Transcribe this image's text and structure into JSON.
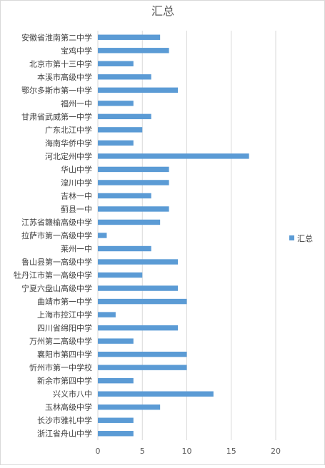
{
  "chart_data": {
    "type": "bar",
    "orientation": "horizontal",
    "title": "汇总",
    "categories": [
      "安徽省淮南第二中学",
      "宝鸡中学",
      "北京市第十三中学",
      "本溪市高级中学",
      "鄂尔多斯市第一中学",
      "福州一中",
      "甘肃省武威第一中学",
      "广东北江中学",
      "海南华侨中学",
      "河北定州中学",
      "华山中学",
      "湟川中学",
      "吉林一中",
      "蓟县一中",
      "江苏省赣榆高级中学",
      "拉萨市第一高级中学",
      "莱州一中",
      "鲁山县第一高级中学",
      "牡丹江市第一高级中学",
      "宁夏六盘山高级中学",
      "曲靖市第一中学",
      "上海市控江中学",
      "四川省绵阳中学",
      "万州第二高级中学",
      "襄阳市第四中学",
      "忻州市第一中学校",
      "新余市第四中学",
      "兴义市八中",
      "玉林高级中学",
      "长沙市雅礼中学",
      "浙江省舟山中学"
    ],
    "series": [
      {
        "name": "汇总",
        "values": [
          7,
          8,
          4,
          6,
          9,
          4,
          6,
          5,
          4,
          17,
          8,
          8,
          6,
          8,
          7,
          1,
          6,
          9,
          5,
          9,
          10,
          2,
          9,
          4,
          10,
          10,
          4,
          13,
          7,
          4,
          4
        ]
      }
    ],
    "xlim": [
      0,
      20
    ],
    "x_ticks": [
      0,
      5,
      10,
      15,
      20
    ],
    "grid": "vertical",
    "legend": "right",
    "bar_color": "#5b9bd5"
  }
}
